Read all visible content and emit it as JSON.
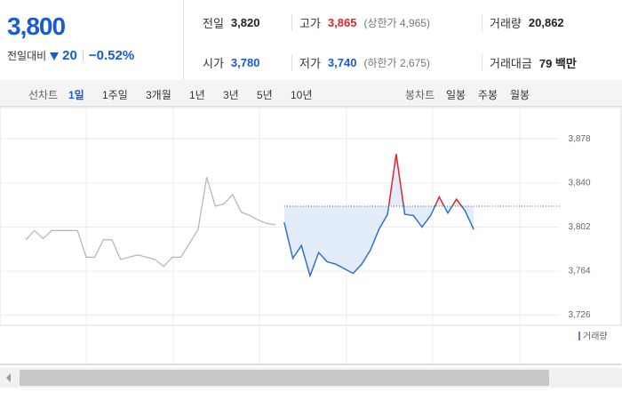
{
  "header": {
    "price": "3,800",
    "change_label": "전일대비",
    "change": "20",
    "change_rate": "−0.52%"
  },
  "summary": {
    "rows": [
      [
        {
          "label": "전일",
          "value": "3,820"
        },
        {
          "label": "고가",
          "value": "3,865",
          "note": "(상한가 4,965)"
        },
        {
          "label": "거래량",
          "value": "20,862"
        }
      ],
      [
        {
          "label": "시가",
          "value": "3,780"
        },
        {
          "label": "저가",
          "value": "3,740",
          "note": "(하한가 2,675)"
        },
        {
          "label": "거래대금",
          "value": "79 백만"
        }
      ]
    ]
  },
  "tabs": {
    "line_label": "선차트",
    "line_periods": [
      "1일",
      "1주일",
      "3개월",
      "1년",
      "3년",
      "5년",
      "10년"
    ],
    "candle_label": "봉차트",
    "candle_periods": [
      "일봉",
      "주봉",
      "월봉"
    ]
  },
  "chart_data": {
    "type": "line",
    "x": [
      0,
      1,
      2,
      3,
      4,
      5,
      6,
      7,
      8,
      9,
      10,
      11,
      12,
      13,
      14,
      15,
      16,
      17,
      18,
      19,
      20,
      21,
      22,
      23,
      24,
      25,
      26,
      27,
      28,
      29,
      30,
      31,
      32,
      33,
      34,
      35,
      36,
      37,
      38,
      39,
      40,
      41,
      42,
      43,
      44,
      45,
      46,
      47,
      48,
      49,
      50,
      51,
      52,
      53,
      54,
      55
    ],
    "xlim": [
      0,
      65
    ],
    "ylim": [
      3718,
      3902
    ],
    "yticks": [
      {
        "value": 3878,
        "label": "3,878"
      },
      {
        "value": 3840,
        "label": "3,840"
      },
      {
        "value": 3802,
        "label": "3,802"
      },
      {
        "value": 3764,
        "label": "3,764"
      },
      {
        "value": 3726,
        "label": "3,726"
      }
    ],
    "grid": true,
    "reference": 3820,
    "up_color": "#e0242a",
    "volume_legend": "거래량",
    "series": [
      {
        "color": "#b4b4b4",
        "values": [
          null,
          null,
          null,
          3791,
          3799,
          3792,
          3799,
          3799,
          3799,
          3799,
          3776,
          3776,
          3791,
          3791,
          3774,
          3776,
          3778,
          3776,
          3774,
          3768,
          3776,
          3776,
          3788,
          3800,
          3845,
          3820,
          3822,
          3830,
          3815,
          3812,
          3808,
          3805,
          3804,
          null,
          null,
          null,
          null,
          null,
          null,
          null,
          null,
          null,
          null,
          null,
          null,
          null,
          null,
          null,
          null,
          null,
          null,
          null,
          null,
          null,
          null,
          null
        ]
      },
      {
        "color": "#2f6fd0",
        "values": [
          null,
          null,
          null,
          null,
          null,
          null,
          null,
          null,
          null,
          null,
          null,
          null,
          null,
          null,
          null,
          null,
          null,
          null,
          null,
          null,
          null,
          null,
          null,
          null,
          null,
          null,
          null,
          null,
          null,
          null,
          null,
          null,
          null,
          3806,
          3775,
          3786,
          3760,
          3780,
          3772,
          3770,
          3766,
          3762,
          3770,
          3782,
          3800,
          3813,
          3865,
          3813,
          3812,
          3802,
          3812,
          3828,
          3814,
          3826,
          3816,
          3800
        ]
      }
    ]
  }
}
